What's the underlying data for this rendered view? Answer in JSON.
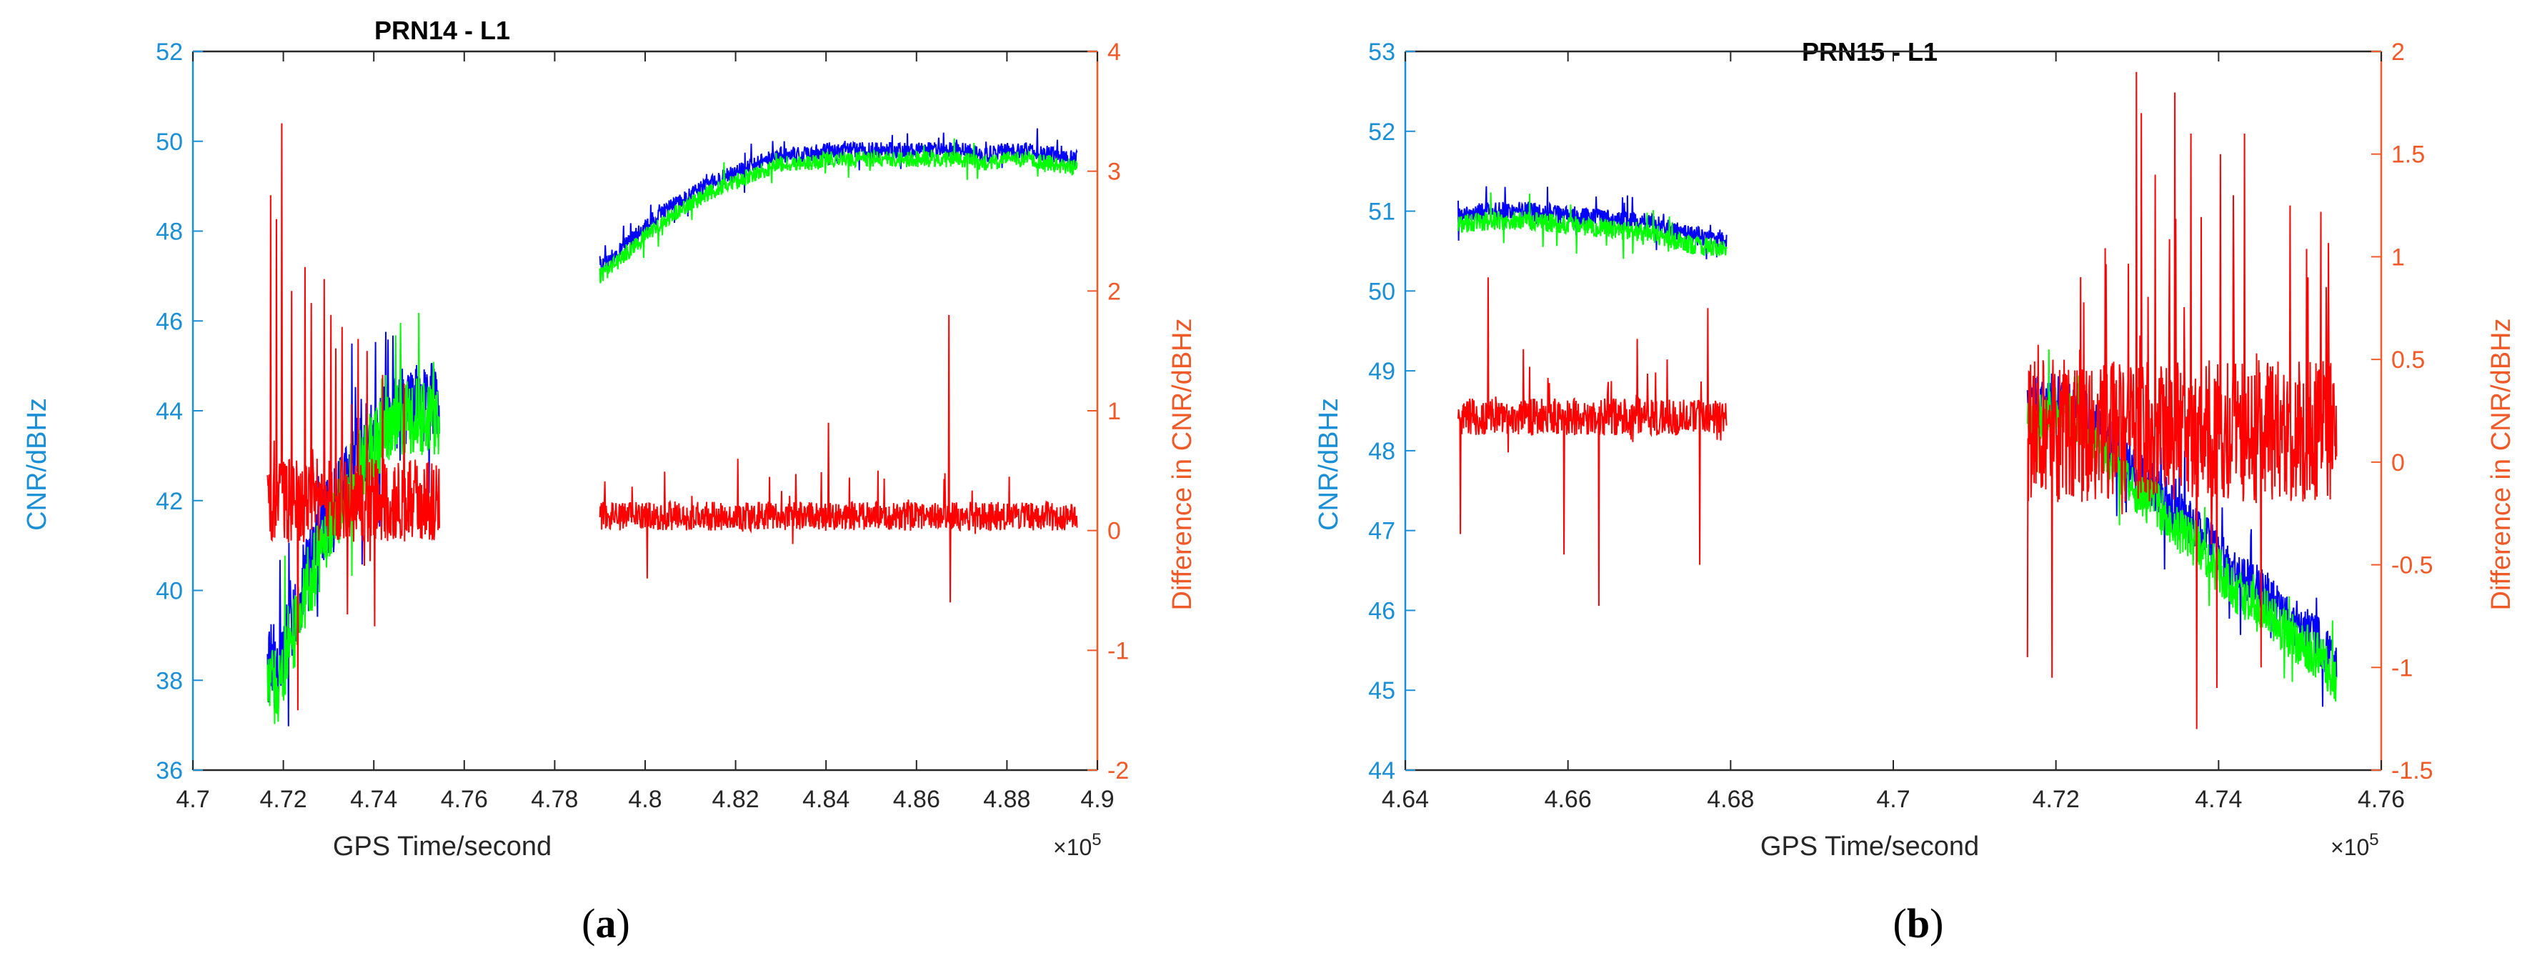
{
  "colors": {
    "left_axis": "#1a8fd6",
    "right_axis": "#f05a28",
    "cnr_series_1": "#0000ff",
    "cnr_series_2": "#00ff00",
    "difference": "#ff0000",
    "frame": "#262626"
  },
  "chart_data": [
    {
      "type": "line",
      "panel_label": "(a)",
      "panel_letter": "a",
      "title": "PRN14 - L1",
      "xlabel": "GPS Time/second",
      "ylabel_left": "CNR/dBHz",
      "ylabel_right": "Difference in CNR/dBHz",
      "x_exponent_label": "×10",
      "x_exponent_power": "5",
      "x_multiplier": 100000,
      "xlim": [
        4.7,
        4.9
      ],
      "ylim_left": [
        36,
        52
      ],
      "ylim_right": [
        -2,
        4
      ],
      "x_ticks": [
        4.7,
        4.72,
        4.74,
        4.76,
        4.78,
        4.8,
        4.82,
        4.84,
        4.86,
        4.88,
        4.9
      ],
      "x_tick_labels": [
        "4.7",
        "4.72",
        "4.74",
        "4.76",
        "4.78",
        "4.8",
        "4.82",
        "4.84",
        "4.86",
        "4.88",
        "4.9"
      ],
      "y_left_ticks": [
        36,
        38,
        40,
        42,
        44,
        46,
        48,
        50,
        52
      ],
      "y_left_tick_labels": [
        "36",
        "38",
        "40",
        "42",
        "44",
        "46",
        "48",
        "50",
        "52"
      ],
      "y_right_ticks": [
        -2,
        -1,
        0,
        1,
        2,
        3,
        4
      ],
      "y_right_tick_labels": [
        "-2",
        "-1",
        "0",
        "1",
        "2",
        "3",
        "4"
      ],
      "segments": [
        {
          "x_start": 4.7165,
          "x_end": 4.7545,
          "cnr_1": [
            [
              4.7165,
              38.2
            ],
            [
              4.7175,
              38.7
            ],
            [
              4.7185,
              37.8
            ],
            [
              4.7195,
              38.5
            ],
            [
              4.7205,
              38.7
            ],
            [
              4.7215,
              39.4
            ],
            [
              4.7225,
              39.3
            ],
            [
              4.7235,
              39.8
            ],
            [
              4.7245,
              40.3
            ],
            [
              4.7255,
              40.4
            ],
            [
              4.7265,
              40.8
            ],
            [
              4.7275,
              40.9
            ],
            [
              4.7285,
              41.3
            ],
            [
              4.7295,
              41.6
            ],
            [
              4.7305,
              41.7
            ],
            [
              4.7315,
              41.9
            ],
            [
              4.7325,
              42.3
            ],
            [
              4.7335,
              42.5
            ],
            [
              4.7345,
              42.7
            ],
            [
              4.7355,
              42.9
            ],
            [
              4.7365,
              43.0
            ],
            [
              4.7375,
              43.2
            ],
            [
              4.7385,
              43.3
            ],
            [
              4.7395,
              43.4
            ],
            [
              4.7405,
              43.6
            ],
            [
              4.7415,
              43.7
            ],
            [
              4.7425,
              43.8
            ],
            [
              4.7435,
              43.9
            ],
            [
              4.7445,
              44.0
            ],
            [
              4.7455,
              44.0
            ],
            [
              4.7465,
              44.1
            ],
            [
              4.7475,
              44.1
            ],
            [
              4.7485,
              44.1
            ],
            [
              4.7495,
              44.2
            ],
            [
              4.7505,
              44.2
            ],
            [
              4.7515,
              44.2
            ],
            [
              4.7525,
              44.2
            ],
            [
              4.7535,
              44.2
            ],
            [
              4.7545,
              44.2
            ]
          ],
          "cnr_1_noise": 0.9,
          "cnr_offset_2": 0.3,
          "diff_base": 0.25,
          "diff_noise": 0.35,
          "diff_spikes": [
            [
              4.7172,
              2.8
            ],
            [
              4.7185,
              2.6
            ],
            [
              4.7197,
              3.4
            ],
            [
              4.7218,
              2.0
            ],
            [
              4.7232,
              -1.5
            ],
            [
              4.7248,
              2.2
            ],
            [
              4.7262,
              1.9
            ],
            [
              4.729,
              2.1
            ],
            [
              4.7305,
              1.8
            ],
            [
              4.733,
              1.7
            ],
            [
              4.7342,
              -0.7
            ],
            [
              4.7365,
              1.6
            ],
            [
              4.7385,
              1.5
            ],
            [
              4.7402,
              -0.8
            ],
            [
              4.742,
              1.3
            ]
          ]
        },
        {
          "x_start": 4.79,
          "x_end": 4.8955,
          "cnr_1": [
            [
              4.79,
              47.2
            ],
            [
              4.795,
              47.6
            ],
            [
              4.8,
              48.1
            ],
            [
              4.805,
              48.5
            ],
            [
              4.81,
              48.8
            ],
            [
              4.815,
              49.1
            ],
            [
              4.82,
              49.3
            ],
            [
              4.825,
              49.5
            ],
            [
              4.83,
              49.7
            ],
            [
              4.835,
              49.7
            ],
            [
              4.84,
              49.8
            ],
            [
              4.845,
              49.8
            ],
            [
              4.85,
              49.8
            ],
            [
              4.855,
              49.8
            ],
            [
              4.86,
              49.8
            ],
            [
              4.865,
              49.8
            ],
            [
              4.87,
              49.8
            ],
            [
              4.875,
              49.7
            ],
            [
              4.88,
              49.8
            ],
            [
              4.885,
              49.8
            ],
            [
              4.89,
              49.7
            ],
            [
              4.8955,
              49.6
            ]
          ],
          "cnr_1_noise": 0.18,
          "cnr_offset_2": 0.2,
          "diff_base": 0.12,
          "diff_noise": 0.12,
          "diff_spikes": [
            [
              4.8405,
              0.9
            ],
            [
              4.8672,
              1.8
            ],
            [
              4.8675,
              -0.6
            ],
            [
              4.8005,
              -0.4
            ],
            [
              4.8205,
              0.6
            ],
            [
              4.8515,
              0.5
            ],
            [
              4.8805,
              0.45
            ]
          ]
        }
      ]
    },
    {
      "type": "line",
      "panel_label": "(b)",
      "panel_letter": "b",
      "title": "PRN15 - L1",
      "xlabel": "GPS Time/second",
      "ylabel_left": "CNR/dBHz",
      "ylabel_right": "Difference in CNR/dBHz",
      "x_exponent_label": "×10",
      "x_exponent_power": "5",
      "x_multiplier": 100000,
      "xlim": [
        4.64,
        4.76
      ],
      "ylim_left": [
        44,
        53
      ],
      "ylim_right": [
        -1.5,
        2
      ],
      "x_ticks": [
        4.64,
        4.66,
        4.68,
        4.7,
        4.72,
        4.74,
        4.76
      ],
      "x_tick_labels": [
        "4.64",
        "4.66",
        "4.68",
        "4.7",
        "4.72",
        "4.74",
        "4.76"
      ],
      "y_left_ticks": [
        44,
        45,
        46,
        47,
        48,
        49,
        50,
        51,
        52,
        53
      ],
      "y_left_tick_labels": [
        "44",
        "45",
        "46",
        "47",
        "48",
        "49",
        "50",
        "51",
        "52",
        "53"
      ],
      "y_right_ticks": [
        -1.5,
        -1,
        -0.5,
        0,
        0.5,
        1,
        1.5,
        2
      ],
      "y_right_tick_labels": [
        "-1.5",
        "-1",
        "-0.5",
        "0",
        "0.5",
        "1",
        "1.5",
        "2"
      ],
      "segments": [
        {
          "x_start": 4.6465,
          "x_end": 4.6795,
          "cnr_1": [
            [
              4.6465,
              50.95
            ],
            [
              4.65,
              51.0
            ],
            [
              4.655,
              51.0
            ],
            [
              4.66,
              50.95
            ],
            [
              4.665,
              50.9
            ],
            [
              4.67,
              50.85
            ],
            [
              4.675,
              50.7
            ],
            [
              4.6795,
              50.65
            ]
          ],
          "cnr_1_noise": 0.12,
          "cnr_offset_2": 0.12,
          "diff_base": 0.22,
          "diff_noise": 0.09,
          "diff_spikes": [
            [
              4.6502,
              0.9
            ],
            [
              4.6468,
              -0.35
            ],
            [
              4.6638,
              -0.7
            ],
            [
              4.6595,
              -0.45
            ],
            [
              4.6762,
              -0.5
            ],
            [
              4.6772,
              0.75
            ],
            [
              4.6545,
              0.55
            ],
            [
              4.6685,
              0.6
            ],
            [
              4.6722,
              0.5
            ]
          ]
        },
        {
          "x_start": 4.7165,
          "x_end": 4.7545,
          "cnr_1": [
            [
              4.7165,
              48.6
            ],
            [
              4.72,
              48.7
            ],
            [
              4.7225,
              48.6
            ],
            [
              4.725,
              48.3
            ],
            [
              4.7275,
              48.0
            ],
            [
              4.73,
              47.7
            ],
            [
              4.7325,
              47.5
            ],
            [
              4.735,
              47.2
            ],
            [
              4.7375,
              47.0
            ],
            [
              4.74,
              46.7
            ],
            [
              4.7425,
              46.4
            ],
            [
              4.745,
              46.3
            ],
            [
              4.7475,
              46.0
            ],
            [
              4.75,
              45.8
            ],
            [
              4.7525,
              45.6
            ],
            [
              4.7545,
              45.3
            ]
          ],
          "cnr_1_noise": 0.3,
          "cnr_offset_2": 0.2,
          "diff_base": 0.15,
          "diff_noise": 0.35,
          "diff_spikes": [
            [
              4.7163,
              -0.95
            ],
            [
              4.7195,
              -1.05
            ],
            [
              4.7299,
              1.9
            ],
            [
              4.7305,
              1.7
            ],
            [
              4.7322,
              1.4
            ],
            [
              4.7346,
              1.8
            ],
            [
              4.7366,
              1.6
            ],
            [
              4.7373,
              -1.3
            ],
            [
              4.7398,
              -1.1
            ],
            [
              4.7402,
              1.5
            ],
            [
              4.7418,
              1.3
            ],
            [
              4.7432,
              1.6
            ],
            [
              4.7452,
              -1.0
            ],
            [
              4.7488,
              1.25
            ],
            [
              4.751,
              0.9
            ]
          ]
        }
      ]
    }
  ]
}
